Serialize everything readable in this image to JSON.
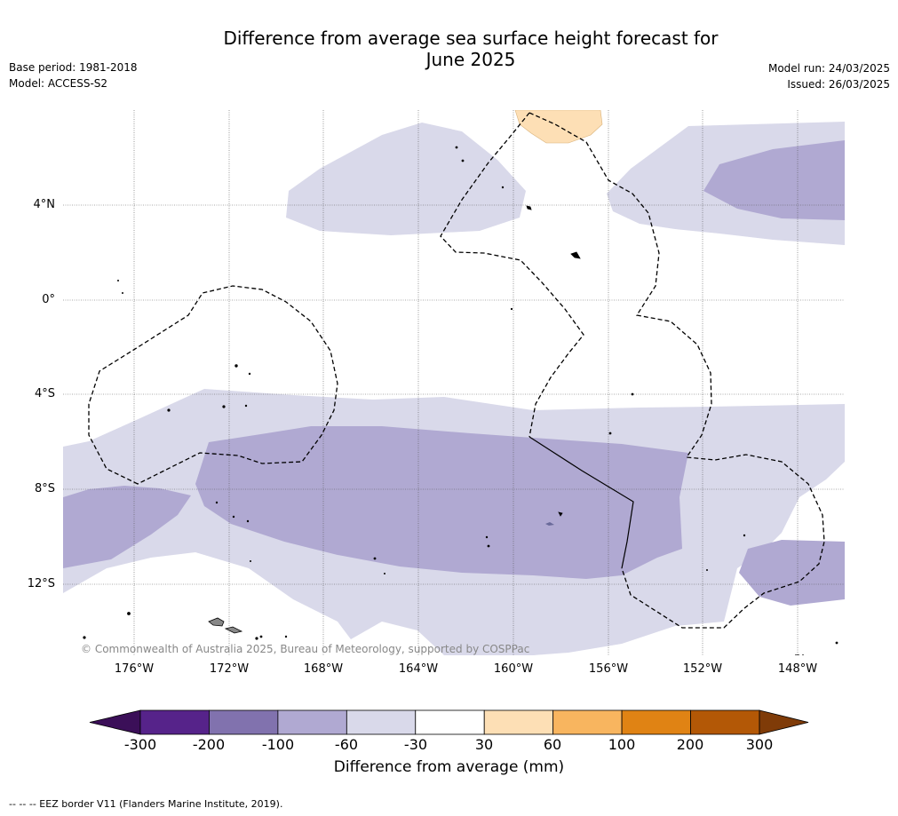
{
  "title_line1": "Difference from average sea surface height forecast for",
  "title_line2": "June 2025",
  "meta_left": [
    "Base period: 1981-2018",
    "Model: ACCESS-S2"
  ],
  "meta_right": [
    "Model run: 24/03/2025",
    "Issued: 26/03/2025"
  ],
  "lat_labels": [
    "4°N",
    "0°",
    "4°S",
    "8°S",
    "12°S"
  ],
  "lon_labels": [
    "176°W",
    "172°W",
    "168°W",
    "164°W",
    "160°W",
    "156°W",
    "152°W",
    "148°W"
  ],
  "copyright": "© Commonwealth of Australia 2025, Bureau of Meteorology, supported by COSPPac",
  "colorbar": {
    "ticks": [
      "-300",
      "-200",
      "-100",
      "-60",
      "-30",
      "30",
      "60",
      "100",
      "200",
      "300"
    ],
    "colors": [
      "#3b0f58",
      "#56238a",
      "#8172ae",
      "#b0a9d2",
      "#d9d9ea",
      "#ffffff",
      "#fddfb5",
      "#f8b55f",
      "#e08314",
      "#b35806",
      "#7f3b08"
    ],
    "title": "Difference from average (mm)"
  },
  "footer": "--  --  -- EEZ border V11 (Flanders Marine Institute, 2019)."
}
